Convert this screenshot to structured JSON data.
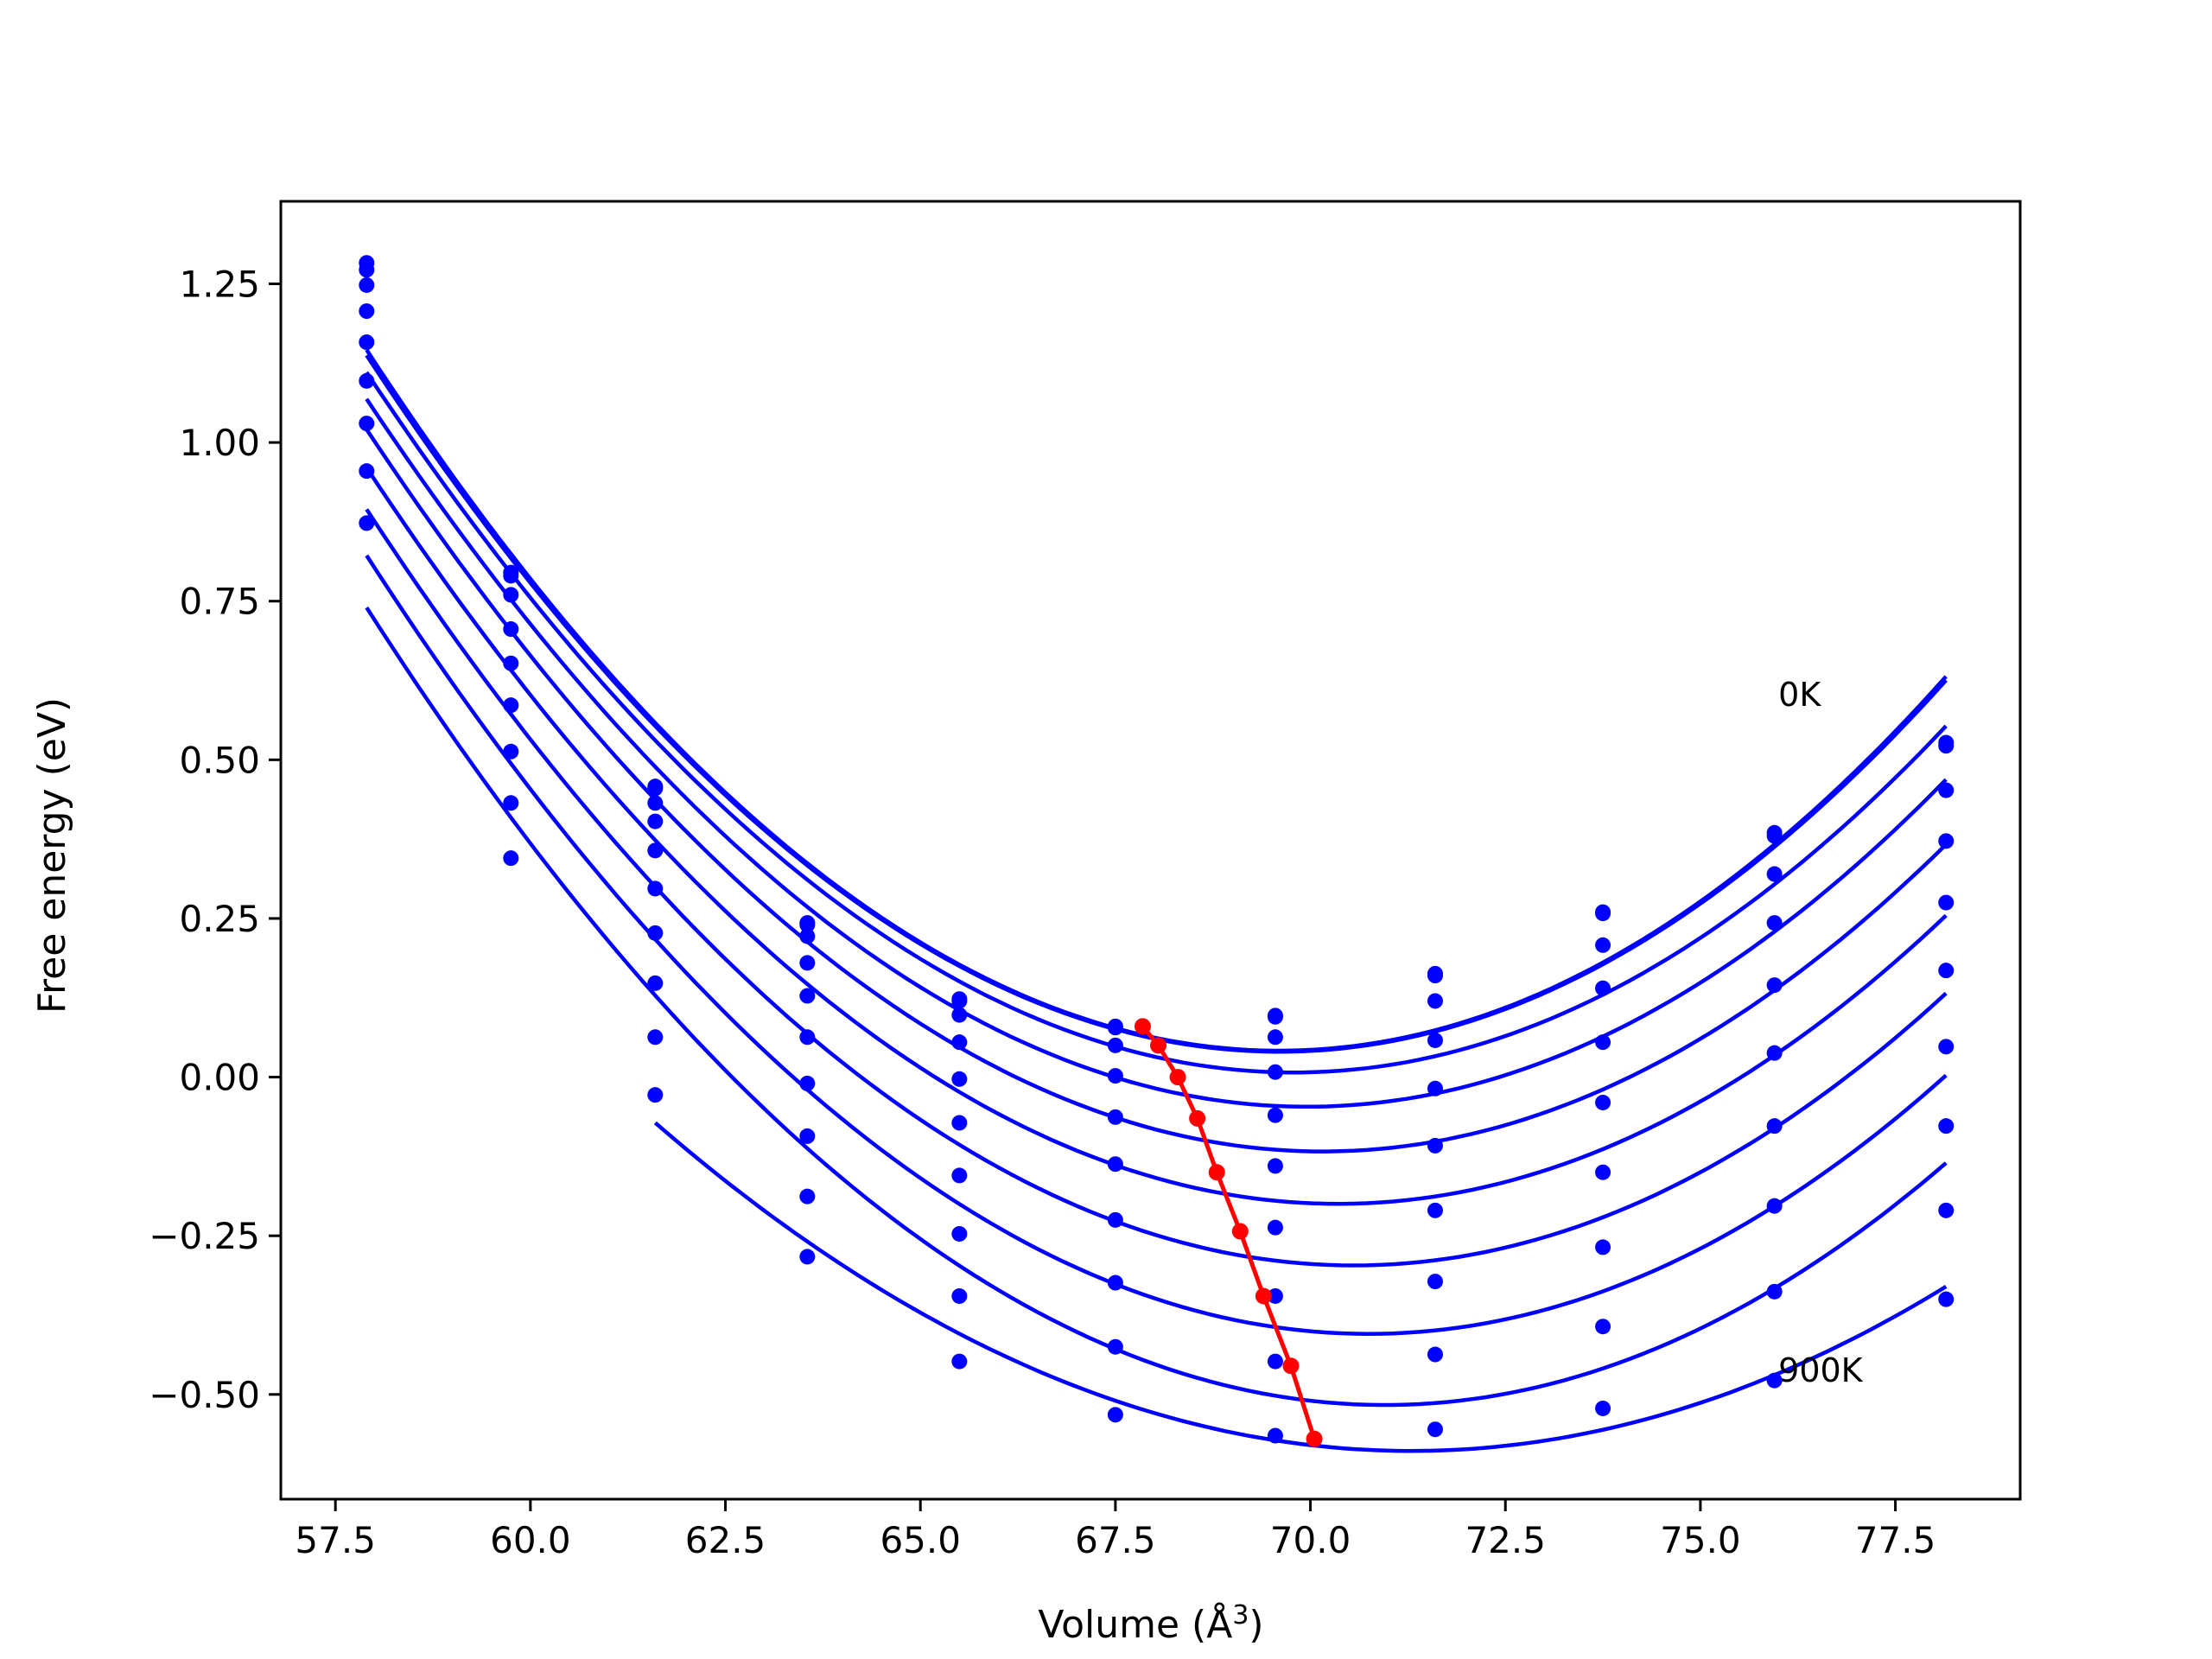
{
  "chart_data": {
    "type": "line",
    "title": "",
    "xlabel": "Volume (Å",
    "xlabel_sup": "3",
    "xlabel_close": ")",
    "ylabel": "Free energy (eV)",
    "xlim": [
      56.8,
      79.1
    ],
    "ylim": [
      -0.665,
      1.38
    ],
    "grid": false,
    "legend": "none",
    "x_ticks": [
      57.5,
      60.0,
      62.5,
      65.0,
      67.5,
      70.0,
      72.5,
      75.0,
      77.5
    ],
    "x_tick_labels": [
      "57.5",
      "60.0",
      "62.5",
      "65.0",
      "67.5",
      "70.0",
      "72.5",
      "75.0",
      "77.5"
    ],
    "y_ticks": [
      1.25,
      1.0,
      0.75,
      0.5,
      0.25,
      0.0,
      -0.25,
      -0.5
    ],
    "y_tick_labels": [
      "1.25",
      "1.00",
      "0.75",
      "0.50",
      "0.25",
      "0.00",
      "−0.25",
      "−0.50"
    ],
    "colors": {
      "series": "#0000ff",
      "minimum_path": "#ff0000"
    },
    "annotations": [
      {
        "text": "0K",
        "x": 76.0,
        "y": 0.585
      },
      {
        "text": "900K",
        "x": 76.0,
        "y": -0.48
      }
    ],
    "volumes": [
      57.9,
      59.75,
      61.6,
      63.55,
      65.5,
      67.5,
      69.55,
      71.6,
      73.75,
      75.95,
      78.15
    ],
    "series": [
      {
        "values": [
          1.283,
          0.795,
          0.458,
          0.243,
          0.123,
          0.08,
          0.097,
          0.163,
          0.26,
          0.385,
          0.527
        ]
      },
      {
        "values": [
          1.272,
          0.79,
          0.455,
          0.24,
          0.12,
          0.078,
          0.095,
          0.16,
          0.258,
          0.38,
          0.522
        ]
      },
      {
        "values": [
          1.248,
          0.76,
          0.432,
          0.222,
          0.098,
          0.05,
          0.063,
          0.12,
          0.208,
          0.32,
          0.452
        ]
      },
      {
        "values": [
          1.207,
          0.706,
          0.403,
          0.18,
          0.055,
          0.002,
          0.008,
          0.058,
          0.14,
          0.243,
          0.372
        ]
      },
      {
        "values": [
          1.158,
          0.652,
          0.357,
          0.128,
          -0.003,
          -0.063,
          -0.06,
          -0.018,
          0.055,
          0.145,
          0.275
        ]
      },
      {
        "values": [
          1.097,
          0.586,
          0.297,
          0.063,
          -0.072,
          -0.137,
          -0.14,
          -0.108,
          -0.04,
          0.038,
          0.168
        ]
      },
      {
        "values": [
          1.03,
          0.513,
          0.227,
          -0.01,
          -0.155,
          -0.225,
          -0.237,
          -0.21,
          -0.15,
          -0.077,
          0.048
        ]
      },
      {
        "values": [
          0.955,
          0.432,
          0.148,
          -0.093,
          -0.247,
          -0.324,
          -0.345,
          -0.322,
          -0.268,
          -0.203,
          -0.077
        ]
      },
      {
        "values": [
          0.873,
          0.345,
          0.063,
          -0.188,
          -0.345,
          -0.425,
          -0.448,
          -0.437,
          -0.393,
          -0.338,
          -0.21
        ]
      },
      {
        "values": [
          null,
          null,
          -0.028,
          -0.283,
          -0.448,
          -0.532,
          -0.565,
          -0.555,
          -0.522,
          -0.478,
          -0.35
        ]
      }
    ],
    "minimum_path": {
      "x": [
        67.85,
        68.05,
        68.3,
        68.55,
        68.8,
        69.1,
        69.4,
        69.75,
        70.05
      ],
      "y": [
        0.08,
        0.05,
        0.0,
        -0.065,
        -0.15,
        -0.243,
        -0.345,
        -0.455,
        -0.57
      ]
    }
  }
}
